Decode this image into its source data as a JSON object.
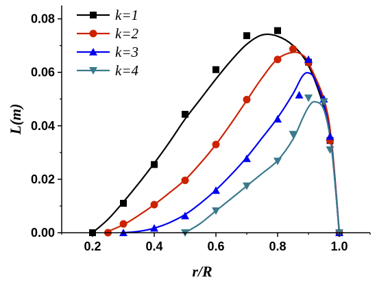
{
  "chart_data": {
    "type": "line",
    "xlabel": "r/R",
    "ylabel": "L(m)",
    "xlim": [
      0.1,
      1.1
    ],
    "ylim": [
      0.0,
      0.085
    ],
    "xticks": [
      "0.2",
      "0.4",
      "0.6",
      "0.8",
      "1.0"
    ],
    "yticks": [
      "0.00",
      "0.02",
      "0.04",
      "0.06",
      "0.08"
    ],
    "legend_position": "top-left",
    "series": [
      {
        "name": "k=1",
        "color": "#000000",
        "marker": "square",
        "points": [
          [
            0.2,
            0.0
          ],
          [
            0.3,
            0.011
          ],
          [
            0.4,
            0.0255
          ],
          [
            0.5,
            0.0443
          ],
          [
            0.6,
            0.061
          ],
          [
            0.7,
            0.0737
          ],
          [
            0.8,
            0.0756
          ],
          [
            0.9,
            0.0638
          ],
          [
            0.97,
            0.0345
          ],
          [
            1.0,
            0.0
          ]
        ],
        "curve": [
          [
            0.2,
            0.0
          ],
          [
            0.25,
            0.005
          ],
          [
            0.3,
            0.0115
          ],
          [
            0.35,
            0.0185
          ],
          [
            0.4,
            0.026
          ],
          [
            0.45,
            0.034
          ],
          [
            0.5,
            0.0425
          ],
          [
            0.55,
            0.05
          ],
          [
            0.6,
            0.0575
          ],
          [
            0.65,
            0.0645
          ],
          [
            0.7,
            0.0705
          ],
          [
            0.75,
            0.074
          ],
          [
            0.8,
            0.0735
          ],
          [
            0.85,
            0.07
          ],
          [
            0.9,
            0.0625
          ],
          [
            0.95,
            0.047
          ],
          [
            0.975,
            0.033
          ],
          [
            1.0,
            0.0
          ]
        ]
      },
      {
        "name": "k=2",
        "color": "#cc2200",
        "marker": "circle",
        "points": [
          [
            0.25,
            0.0
          ],
          [
            0.3,
            0.0033
          ],
          [
            0.4,
            0.0105
          ],
          [
            0.5,
            0.0196
          ],
          [
            0.6,
            0.033
          ],
          [
            0.7,
            0.0498
          ],
          [
            0.8,
            0.0648
          ],
          [
            0.85,
            0.0687
          ],
          [
            0.9,
            0.0637
          ],
          [
            0.97,
            0.0345
          ],
          [
            1.0,
            0.0
          ]
        ],
        "curve": [
          [
            0.24,
            0.0
          ],
          [
            0.3,
            0.003
          ],
          [
            0.35,
            0.0065
          ],
          [
            0.4,
            0.0105
          ],
          [
            0.45,
            0.015
          ],
          [
            0.5,
            0.0198
          ],
          [
            0.55,
            0.026
          ],
          [
            0.6,
            0.033
          ],
          [
            0.65,
            0.041
          ],
          [
            0.7,
            0.0495
          ],
          [
            0.75,
            0.058
          ],
          [
            0.8,
            0.065
          ],
          [
            0.85,
            0.0675
          ],
          [
            0.88,
            0.0665
          ],
          [
            0.9,
            0.0635
          ],
          [
            0.95,
            0.05
          ],
          [
            0.975,
            0.034
          ],
          [
            1.0,
            0.0
          ]
        ]
      },
      {
        "name": "k=3",
        "color": "#0000ee",
        "marker": "triangle-up",
        "points": [
          [
            0.3,
            0.0
          ],
          [
            0.4,
            0.0017
          ],
          [
            0.5,
            0.0063
          ],
          [
            0.6,
            0.0158
          ],
          [
            0.7,
            0.0277
          ],
          [
            0.8,
            0.0425
          ],
          [
            0.87,
            0.0515
          ],
          [
            0.9,
            0.0648
          ],
          [
            0.95,
            0.05
          ],
          [
            0.97,
            0.036
          ],
          [
            1.0,
            0.0
          ]
        ],
        "curve": [
          [
            0.3,
            0.0
          ],
          [
            0.35,
            0.0005
          ],
          [
            0.4,
            0.0017
          ],
          [
            0.45,
            0.0038
          ],
          [
            0.5,
            0.0068
          ],
          [
            0.55,
            0.011
          ],
          [
            0.6,
            0.016
          ],
          [
            0.65,
            0.0218
          ],
          [
            0.7,
            0.0282
          ],
          [
            0.75,
            0.0355
          ],
          [
            0.8,
            0.043
          ],
          [
            0.85,
            0.052
          ],
          [
            0.88,
            0.0585
          ],
          [
            0.9,
            0.0598
          ],
          [
            0.92,
            0.0575
          ],
          [
            0.95,
            0.048
          ],
          [
            0.975,
            0.032
          ],
          [
            1.0,
            0.0
          ]
        ]
      },
      {
        "name": "k=4",
        "color": "#3a7a8a",
        "marker": "triangle-down",
        "points": [
          [
            0.5,
            0.0
          ],
          [
            0.6,
            0.0082
          ],
          [
            0.7,
            0.0175
          ],
          [
            0.8,
            0.0268
          ],
          [
            0.85,
            0.0368
          ],
          [
            0.9,
            0.0504
          ],
          [
            0.95,
            0.049
          ],
          [
            0.97,
            0.031
          ],
          [
            1.0,
            0.0
          ]
        ],
        "curve": [
          [
            0.5,
            0.0
          ],
          [
            0.55,
            0.0035
          ],
          [
            0.6,
            0.0082
          ],
          [
            0.65,
            0.0128
          ],
          [
            0.7,
            0.0175
          ],
          [
            0.75,
            0.0222
          ],
          [
            0.8,
            0.027
          ],
          [
            0.85,
            0.035
          ],
          [
            0.88,
            0.0425
          ],
          [
            0.9,
            0.047
          ],
          [
            0.92,
            0.049
          ],
          [
            0.95,
            0.046
          ],
          [
            0.975,
            0.0315
          ],
          [
            1.0,
            0.0
          ]
        ]
      }
    ]
  }
}
